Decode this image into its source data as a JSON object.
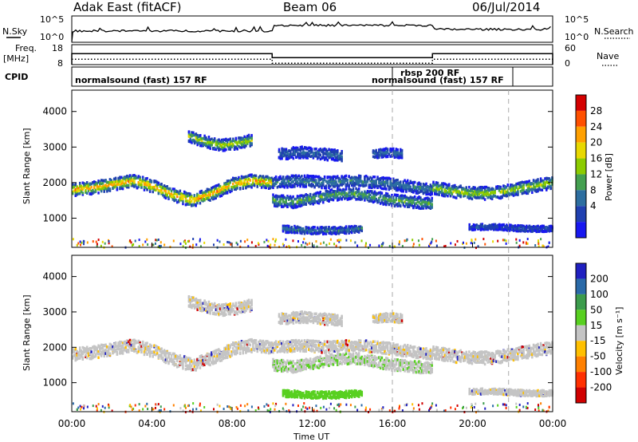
{
  "header": {
    "station": "Adak East (fitACF)",
    "beam": "Beam 06",
    "date": "06/Jul/2014"
  },
  "noise_panel": {
    "left_label": "N.Sky",
    "right_label": "N.Search",
    "left_ticks": [
      "10^5",
      "10^0"
    ],
    "right_ticks": [
      "10^5",
      "10^0"
    ]
  },
  "freq_panel": {
    "left_label_1": "Freq.",
    "left_label_2": "[MHz]",
    "right_label": "Nave",
    "left_ticks": [
      "18",
      "8"
    ],
    "right_ticks": [
      "60",
      "0"
    ]
  },
  "cpid_panel": {
    "label": "CPID",
    "modes": [
      {
        "text": "normalsound (fast) 157 RF"
      },
      {
        "text": "rbsp 200 RF"
      },
      {
        "text": "normalsound (fast) 157 RF"
      }
    ]
  },
  "power_panel": {
    "ylabel": "Slant Range [km]",
    "colorbar_label": "Power [dB]",
    "colorbar_ticks": [
      "28",
      "24",
      "20",
      "16",
      "12",
      "8",
      "4"
    ],
    "colors": [
      "#d40000",
      "#ff5000",
      "#ffa000",
      "#e8d800",
      "#8ccc00",
      "#44a050",
      "#2d6ea0",
      "#2040b0",
      "#1818f0"
    ]
  },
  "velocity_panel": {
    "ylabel": "Slant Range [km]",
    "colorbar_label": "Velocity [m s⁻¹]",
    "colorbar_ticks": [
      "200",
      "100",
      "50",
      "15",
      "-15",
      "-50",
      "-100",
      "-200"
    ],
    "colors": [
      "#2020c0",
      "#2a6aa8",
      "#3c9c4c",
      "#58d020",
      "#c4c4c4",
      "#ffc000",
      "#ff8000",
      "#ff3000",
      "#d00000"
    ]
  },
  "xaxis": {
    "label": "Time UT",
    "ticks": [
      "00:00",
      "04:00",
      "08:00",
      "12:00",
      "16:00",
      "20:00",
      "00:00"
    ]
  },
  "chart_data": {
    "type": "heatmap",
    "title": "Adak East (fitACF)   Beam 06   06/Jul/2014",
    "xlabel": "Time UT",
    "ylabel": "Slant Range [km]",
    "x_ticks": [
      "00:00",
      "04:00",
      "08:00",
      "12:00",
      "16:00",
      "20:00",
      "00:00"
    ],
    "y_ticks": [
      1000,
      2000,
      3000,
      4000
    ],
    "xlim_hours": [
      0,
      24
    ],
    "ylim_km": [
      180,
      4600
    ],
    "mode_changes_hours": [
      16.0,
      21.8
    ],
    "frequency_segments_mhz": [
      {
        "start": 0.0,
        "end": 10.0,
        "value": 13.5
      },
      {
        "start": 10.0,
        "end": 18.0,
        "value": 11.5
      },
      {
        "start": 18.0,
        "end": 24.0,
        "value": 13.5
      }
    ],
    "scatter_bands": [
      {
        "t0": 0.0,
        "t1": 10.0,
        "center_km": [
          1800,
          1850,
          1950,
          2050,
          1900,
          1650,
          1500,
          1700,
          1950,
          2050,
          2000
        ],
        "width_km": 220,
        "peak_power_db": 26
      },
      {
        "t0": 5.8,
        "t1": 9.0,
        "center_km": [
          3300,
          3150,
          3050,
          3100,
          3200
        ],
        "width_km": 200,
        "peak_power_db": 18
      },
      {
        "t0": 10.0,
        "t1": 18.0,
        "center_km": [
          1500,
          1450,
          1550,
          1650,
          1700,
          1600,
          1500,
          1450,
          1400
        ],
        "width_km": 200,
        "peak_power_db": 14
      },
      {
        "t0": 10.0,
        "t1": 18.0,
        "center_km": [
          2000,
          2050,
          2000,
          2050,
          2000,
          1900,
          1800
        ],
        "width_km": 200,
        "peak_power_db": 10
      },
      {
        "t0": 10.3,
        "t1": 13.5,
        "center_km": [
          2800,
          2850,
          2800,
          2750
        ],
        "width_km": 200,
        "peak_power_db": 8
      },
      {
        "t0": 15.0,
        "t1": 16.5,
        "center_km": [
          2800,
          2850,
          2800
        ],
        "width_km": 150,
        "peak_power_db": 8
      },
      {
        "t0": 10.5,
        "t1": 14.5,
        "center_km": [
          700,
          650,
          650,
          700
        ],
        "width_km": 120,
        "peak_power_db": 10
      },
      {
        "t0": 18.0,
        "t1": 24.0,
        "center_km": [
          1850,
          1750,
          1700,
          1700,
          1800,
          1900,
          2000
        ],
        "width_km": 220,
        "peak_power_db": 18
      },
      {
        "t0": 19.8,
        "t1": 24.0,
        "center_km": [
          750,
          750,
          700,
          700
        ],
        "width_km": 100,
        "peak_power_db": 6
      }
    ],
    "power_levels_db": [
      28,
      24,
      20,
      16,
      12,
      8,
      4
    ],
    "velocity_levels_ms": [
      200,
      100,
      50,
      15,
      -15,
      -50,
      -100,
      -200
    ]
  }
}
